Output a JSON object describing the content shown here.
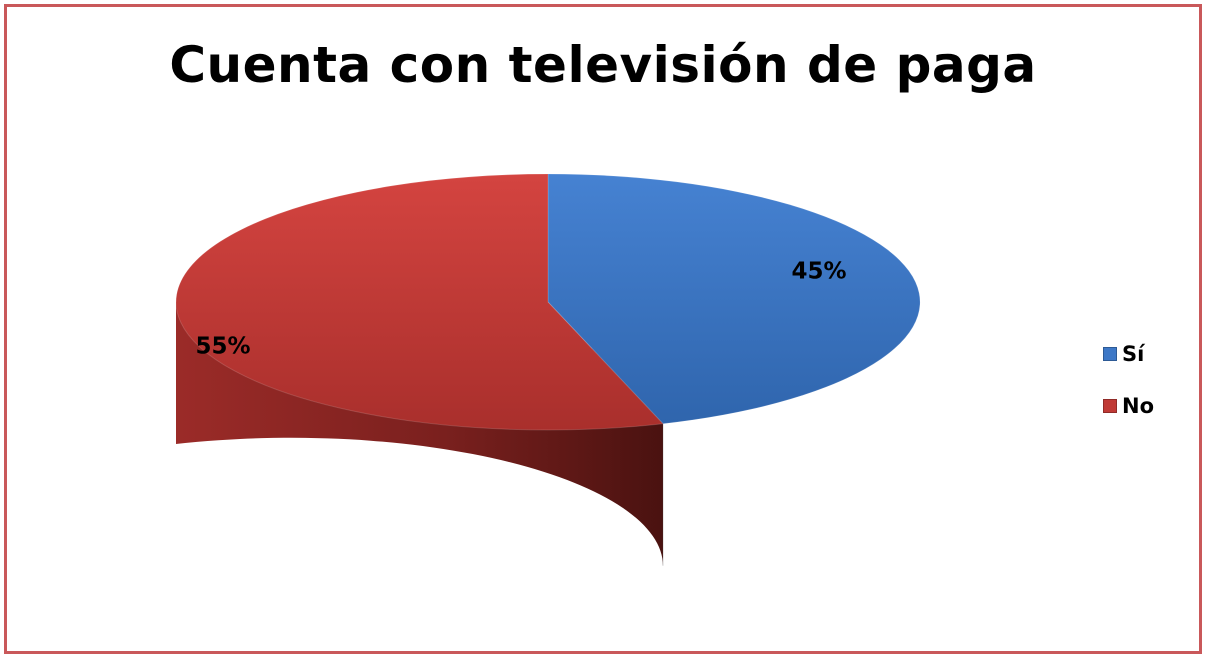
{
  "chart_data": {
    "type": "pie",
    "title": "Cuenta con televisión de paga",
    "three_d": true,
    "legend_position": "right",
    "categories": [
      "Sí",
      "No"
    ],
    "values": [
      45,
      55
    ],
    "data_labels": [
      "45%",
      "55%"
    ],
    "colors": [
      "#3d78c7",
      "#c03a36"
    ]
  }
}
